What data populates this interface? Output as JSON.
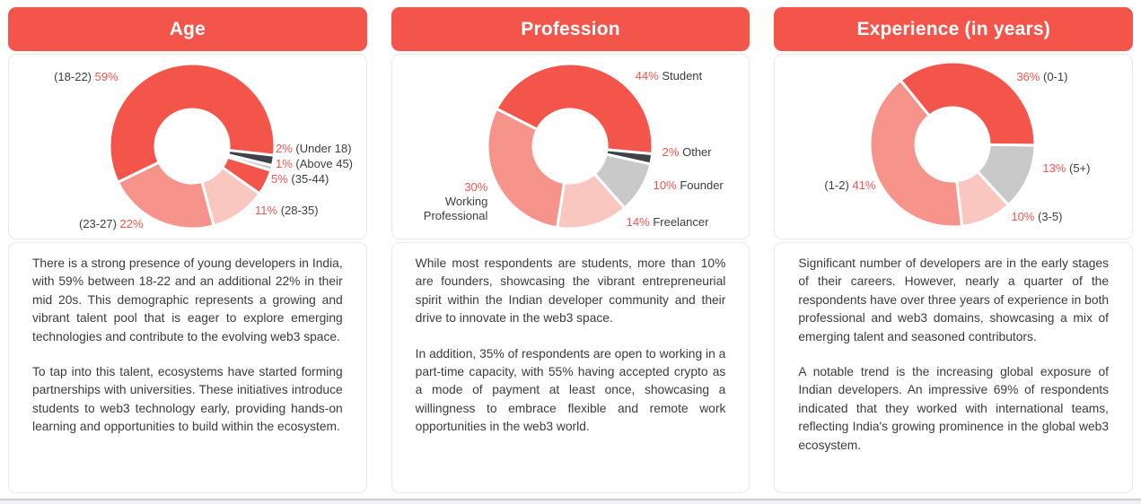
{
  "colors": {
    "red": "#F3554B",
    "salmon": "#F6938A",
    "pink": "#FAC6C0",
    "gray": "#C9C9C9",
    "dark": "#3F4347",
    "pct_text": "#F2544D",
    "category_text": "#3D3D3D",
    "body_text": "#3B3B3B",
    "card_border": "#E9E9E9",
    "header_background": "#F3554B",
    "header_text": "#FFFFFF"
  },
  "cards": [
    {
      "title": "Age",
      "paragraphs": [
        "There is a strong presence of young developers in India, with 59% between 18-22 and an additional 22% in their mid 20s. This demographic represents a growing and vibrant talent pool that is eager to explore emerging technologies and contribute to the evolving web3 space.",
        "To tap into this talent, ecosystems have started forming partnerships with universities. These initiatives introduce students to web3 technology early, providing hands-on learning and opportunities to build within the ecosystem."
      ]
    },
    {
      "title": "Profession",
      "paragraphs": [
        "While most respondents are students, more than 10% are founders, showcasing the vibrant entrepreneurial spirit within the Indian developer community and their drive to innovate in the web3 space.",
        "In addition, 35% of respondents are open to working in a part-time capacity, with 55% having accepted crypto as a mode of payment at least once, showcasing a willingness to embrace flexible and remote work opportunities in the web3 world."
      ]
    },
    {
      "title": "Experience (in years)",
      "paragraphs": [
        "Significant number of developers are in the early stages of their careers. However, nearly a quarter of the respondents have over three years of experience in both professional and web3 domains, showcasing a mix of emerging talent and seasoned contributors.",
        "A notable trend is the increasing global exposure of Indian developers. An impressive 69% of respondents indicated that they worked with international teams, reflecting India's growing prominence in the global web3 ecosystem."
      ]
    }
  ],
  "chart_data": [
    {
      "type": "pie",
      "donut": true,
      "title": "Age",
      "legend": "none",
      "label_style": "percent + category, outside",
      "slices": [
        {
          "label": "(18-22)",
          "value": 59,
          "color": "red"
        },
        {
          "label": "(Under 18)",
          "value": 2,
          "color": "dark"
        },
        {
          "label": "(Above 45)",
          "value": 1,
          "color": "gray"
        },
        {
          "label": "(35-44)",
          "value": 5,
          "color": "red"
        },
        {
          "label": "(28-35)",
          "value": 11,
          "color": "pink"
        },
        {
          "label": "(23-27)",
          "value": 22,
          "color": "salmon"
        }
      ]
    },
    {
      "type": "pie",
      "donut": true,
      "title": "Profession",
      "legend": "none",
      "label_style": "percent + category, outside",
      "slices": [
        {
          "label": "Student",
          "value": 44,
          "color": "red"
        },
        {
          "label": "Other",
          "value": 2,
          "color": "dark"
        },
        {
          "label": "Founder",
          "value": 10,
          "color": "gray"
        },
        {
          "label": "Freelancer",
          "value": 14,
          "color": "pink"
        },
        {
          "label": "Working Professional",
          "value": 30,
          "color": "salmon"
        }
      ]
    },
    {
      "type": "pie",
      "donut": true,
      "title": "Experience (in years)",
      "legend": "none",
      "label_style": "percent + category, outside",
      "slices": [
        {
          "label": "(0-1)",
          "value": 36,
          "color": "red"
        },
        {
          "label": "(5+)",
          "value": 13,
          "color": "gray"
        },
        {
          "label": "(3-5)",
          "value": 10,
          "color": "pink"
        },
        {
          "label": "(1-2)",
          "value": 41,
          "color": "salmon"
        }
      ]
    }
  ]
}
